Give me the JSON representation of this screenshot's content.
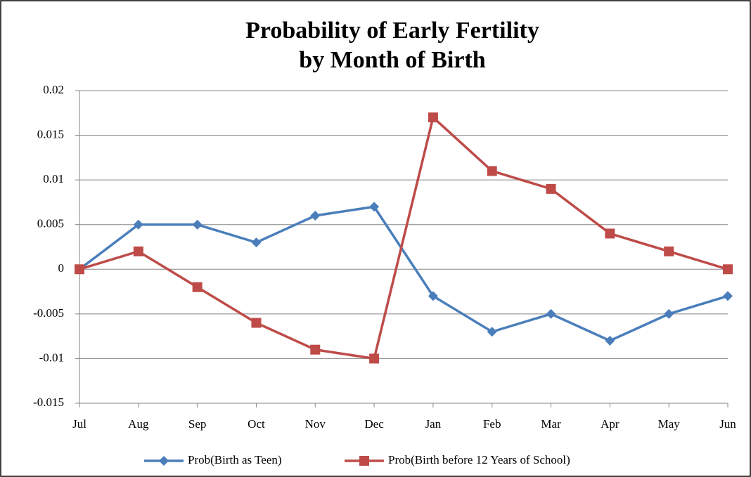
{
  "chart_data": {
    "type": "line",
    "title": [
      "Probability of Early Fertility",
      "by Month of Birth"
    ],
    "categories": [
      "Jul",
      "Aug",
      "Sep",
      "Oct",
      "Nov",
      "Dec",
      "Jan",
      "Feb",
      "Mar",
      "Apr",
      "May",
      "Jun"
    ],
    "series": [
      {
        "name": "Prob(Birth as Teen)",
        "color": "#4a7ebb",
        "marker": "diamond",
        "values": [
          0,
          0.005,
          0.005,
          0.003,
          0.006,
          0.007,
          -0.003,
          -0.007,
          -0.005,
          -0.008,
          -0.005,
          -0.003
        ]
      },
      {
        "name": "Prob(Birth before 12 Years of School)",
        "color": "#be4b48",
        "marker": "square",
        "values": [
          0,
          0.002,
          -0.002,
          -0.006,
          -0.009,
          -0.01,
          0.017,
          0.011,
          0.009,
          0.004,
          0.002,
          0
        ]
      }
    ],
    "ylim": [
      -0.015,
      0.02
    ],
    "yticks": [
      -0.015,
      -0.01,
      -0.005,
      0,
      0.005,
      0.01,
      0.015,
      0.02
    ],
    "grid": true,
    "legend": "bottom"
  }
}
